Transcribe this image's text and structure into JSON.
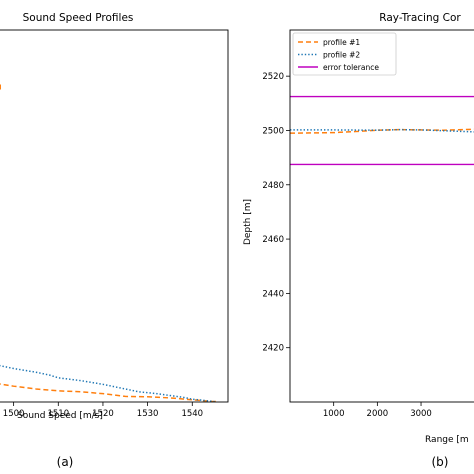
{
  "chart_data": [
    {
      "type": "line",
      "title": "Sound Speed Profiles",
      "xlabel": "Sound Speed [m/s]",
      "ylabel": "",
      "panel_label": "(a)",
      "xlim": [
        1496.5,
        1548
      ],
      "ylim": [
        2000,
        0
      ],
      "x_ticks": [
        1500,
        1510,
        1520,
        1530,
        1540
      ],
      "x_tick_labels": [
        "1500",
        "1510",
        "1520",
        "1530",
        "1540"
      ],
      "grid": false,
      "series": [
        {
          "name": "profile #1",
          "color": "#ff7f0e",
          "style": "dashed",
          "points": [
            [
              1496,
              100
            ],
            [
              1500,
              85
            ],
            [
              1505,
              70
            ],
            [
              1510,
              60
            ],
            [
              1515,
              55
            ],
            [
              1520,
              45
            ],
            [
              1525,
              30
            ],
            [
              1530,
              28
            ],
            [
              1535,
              22
            ],
            [
              1540,
              12
            ],
            [
              1545,
              2
            ],
            [
              1545.5,
              5
            ],
            [
              1545.3,
              0
            ]
          ]
        },
        {
          "name": "profile #2",
          "color": "#1f77b4",
          "style": "dotted",
          "points": [
            [
              1496,
              200
            ],
            [
              1500,
              180
            ],
            [
              1505,
              160
            ],
            [
              1508,
              145
            ],
            [
              1510,
              130
            ],
            [
              1515,
              115
            ],
            [
              1520,
              95
            ],
            [
              1525,
              70
            ],
            [
              1528,
              55
            ],
            [
              1532,
              45
            ],
            [
              1535,
              35
            ],
            [
              1538,
              25
            ],
            [
              1540,
              15
            ],
            [
              1544,
              5
            ],
            [
              1545,
              2
            ]
          ]
        },
        {
          "name": "",
          "color": "#ff7f0e",
          "style": "dashed",
          "points": [
            [
              1497,
              1680
            ],
            [
              1497,
              1710
            ]
          ]
        }
      ]
    },
    {
      "type": "line",
      "title": "Ray-Tracing Cor",
      "xlabel": "Range [m",
      "ylabel": "Depth [m]",
      "panel_label": "(b)",
      "xlim": [
        0,
        4350
      ],
      "ylim": [
        2537,
        2400
      ],
      "x_ticks": [
        1000,
        2000,
        3000
      ],
      "x_tick_labels": [
        "1000",
        "2000",
        "3000"
      ],
      "y_ticks": [
        2420,
        2440,
        2460,
        2480,
        2500,
        2520
      ],
      "y_tick_labels": [
        "2420",
        "2440",
        "2460",
        "2480",
        "2500",
        "2520"
      ],
      "grid": false,
      "legend": {
        "placement": "upper-left",
        "entries": [
          {
            "label": "profile #1",
            "color": "#ff7f0e",
            "style": "dashed"
          },
          {
            "label": "profile #2",
            "color": "#1f77b4",
            "style": "dotted"
          },
          {
            "label": "error tolerance",
            "color": "#bf00bf",
            "style": "solid"
          }
        ]
      },
      "series": [
        {
          "name": "profile #1",
          "color": "#ff7f0e",
          "style": "dashed",
          "points": [
            [
              0,
              2499
            ],
            [
              1000,
              2499.2
            ],
            [
              1500,
              2499.6
            ],
            [
              2000,
              2500.1
            ],
            [
              2500,
              2500.3
            ],
            [
              3000,
              2500.2
            ],
            [
              3500,
              2500.1
            ],
            [
              4350,
              2500.5
            ]
          ]
        },
        {
          "name": "profile #2",
          "color": "#1f77b4",
          "style": "dotted",
          "points": [
            [
              0,
              2500.2
            ],
            [
              1000,
              2500.2
            ],
            [
              2000,
              2500.1
            ],
            [
              2500,
              2500.3
            ],
            [
              3000,
              2500.2
            ],
            [
              4350,
              2499.4
            ]
          ]
        },
        {
          "name": "error tolerance",
          "color": "#bf00bf",
          "style": "solid",
          "points": [
            [
              0,
              2487.5
            ],
            [
              4350,
              2487.5
            ]
          ]
        },
        {
          "name": "error tolerance",
          "color": "#bf00bf",
          "style": "solid",
          "points": [
            [
              0,
              2512.5
            ],
            [
              4350,
              2512.5
            ]
          ]
        }
      ]
    }
  ]
}
